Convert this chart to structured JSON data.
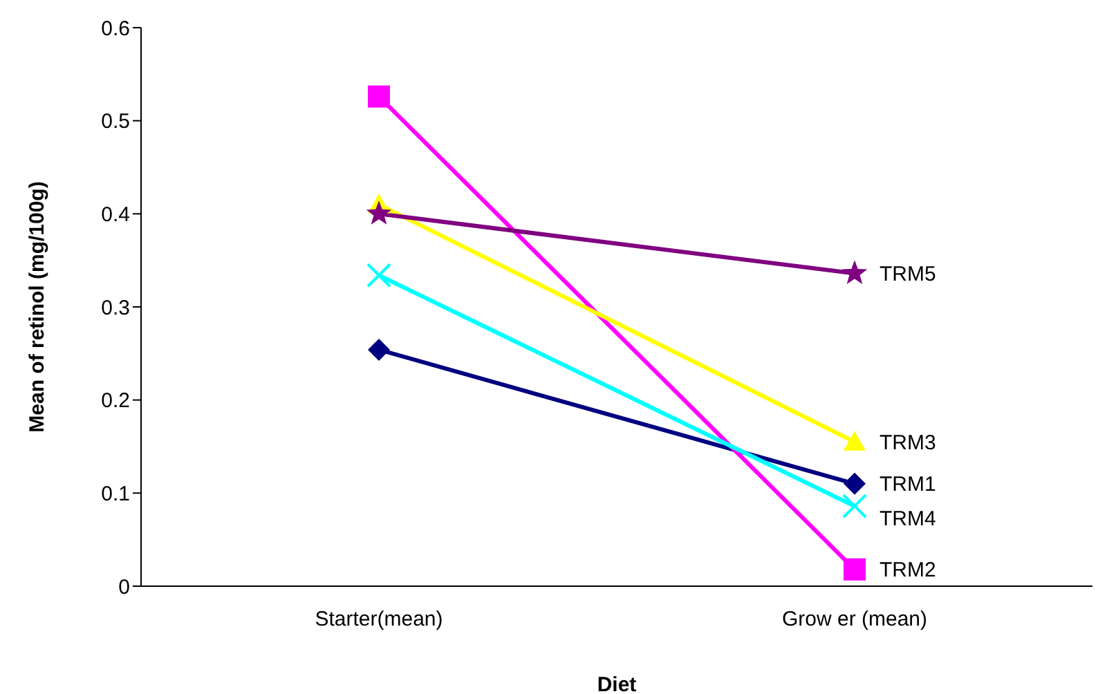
{
  "chart_data": {
    "type": "line",
    "xlabel": "Diet",
    "ylabel": "Mean of retinol (mg/100g)",
    "categories": [
      "Starter(mean)",
      "Grow er (mean)"
    ],
    "ylim": [
      0,
      0.6
    ],
    "yticks": [
      0,
      0.1,
      0.2,
      0.3,
      0.4,
      0.5,
      0.6
    ],
    "series": [
      {
        "name": "TRM1",
        "color": "#000080",
        "marker": "diamond",
        "values": [
          0.254,
          0.11
        ]
      },
      {
        "name": "TRM2",
        "color": "#ff00ff",
        "marker": "square",
        "values": [
          0.526,
          0.018
        ]
      },
      {
        "name": "TRM3",
        "color": "#ffff00",
        "marker": "triangle",
        "values": [
          0.41,
          0.155
        ]
      },
      {
        "name": "TRM4",
        "color": "#00ffff",
        "marker": "cross",
        "values": [
          0.334,
          0.086
        ]
      },
      {
        "name": "TRM5",
        "color": "#800080",
        "marker": "star",
        "values": [
          0.4,
          0.336
        ]
      }
    ]
  }
}
